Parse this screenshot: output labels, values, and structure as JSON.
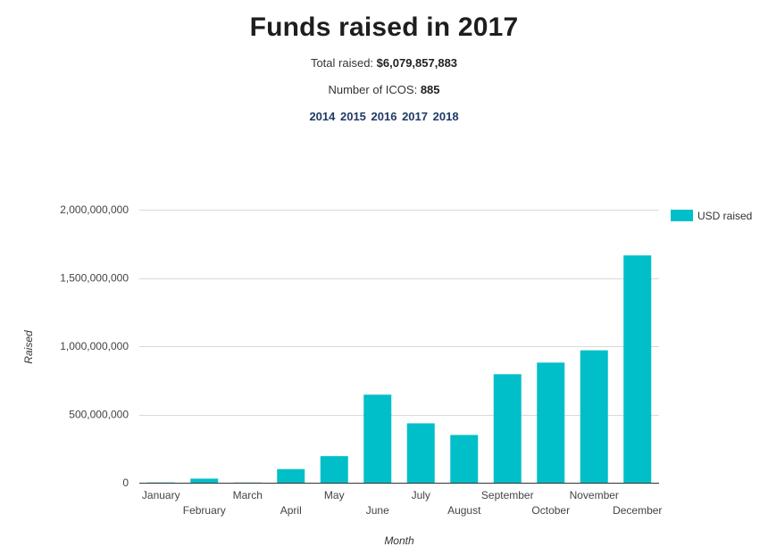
{
  "header": {
    "title": "Funds raised in 2017",
    "total_label": "Total raised:",
    "total_value": "$6,079,857,883",
    "count_label": "Number of ICOS:",
    "count_value": "885",
    "years": [
      "2014",
      "2015",
      "2016",
      "2017",
      "2018"
    ]
  },
  "colors": {
    "bar": "#00bfc9",
    "grid": "#d9d9d9",
    "axis": "#333333",
    "year_link": "#1f3a66"
  },
  "chart_data": {
    "type": "bar",
    "title": "Funds raised in 2017",
    "xlabel": "Month",
    "ylabel": "Raised",
    "ylim": [
      0,
      2000000000
    ],
    "yticks": [
      0,
      500000000,
      1000000000,
      1500000000,
      2000000000
    ],
    "ytick_labels": [
      "0",
      "500,000,000",
      "1,000,000,000",
      "1,500,000,000",
      "2,000,000,000"
    ],
    "grid": true,
    "legend_position": "top-right",
    "categories": [
      "January",
      "February",
      "March",
      "April",
      "May",
      "June",
      "July",
      "August",
      "September",
      "October",
      "November",
      "December"
    ],
    "series": [
      {
        "name": "USD raised",
        "values": [
          2000000,
          30000000,
          1500000,
          100000000,
          195000000,
          645000000,
          435000000,
          350000000,
          795000000,
          880000000,
          970000000,
          1665000000
        ]
      }
    ]
  }
}
